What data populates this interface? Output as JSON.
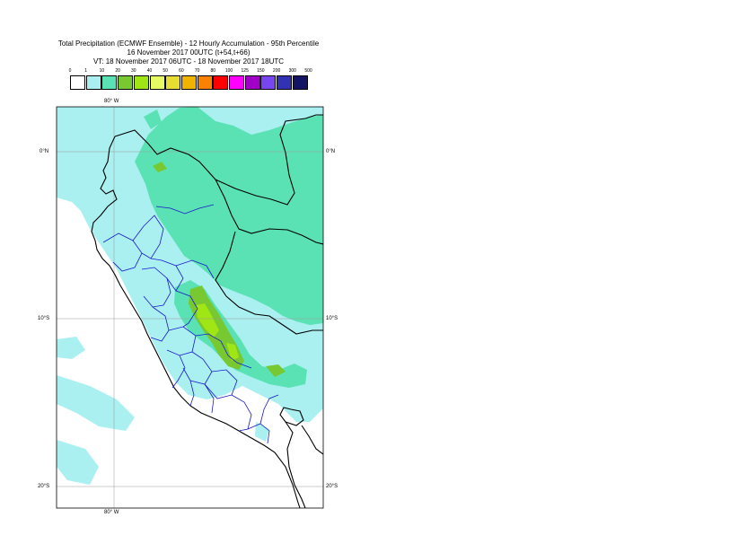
{
  "title": {
    "line1": "Total Precipitation (ECMWF Ensemble) - 12 Hourly Accumulation - 95th Percentile",
    "line2": "16 November 2017 00UTC (t+54,t+66)",
    "line3": "VT: 18 November 2017 06UTC - 18 November 2017 18UTC"
  },
  "legend": {
    "labels": [
      "0",
      "1",
      "10",
      "20",
      "30",
      "40",
      "50",
      "60",
      "70",
      "80",
      "100",
      "125",
      "150",
      "200",
      "300",
      "500"
    ],
    "colors": [
      "#ffffff",
      "#aaf0f0",
      "#5ae2b4",
      "#78c832",
      "#a0e614",
      "#e6fa64",
      "#e6dc32",
      "#f0b400",
      "#fa8200",
      "#ff0000",
      "#ff00ff",
      "#a000c8",
      "#7846f0",
      "#3232b4",
      "#141464"
    ]
  },
  "axes": {
    "lon_top": "80° W",
    "lon_bottom": "80° W",
    "lat_left": [
      "0°N",
      "10°S",
      "20°S"
    ],
    "lat_right": [
      "0°N",
      "10°S",
      "20°S"
    ]
  },
  "map_colors": {
    "ocean": "#aaf0f0",
    "land_low": "#aaf0f0",
    "land_mid": "#5ae2b4",
    "heavy": "#78c832",
    "heavier": "#a0e614",
    "coast": "#000000",
    "admin": "#1a1acc",
    "grid": "#999999"
  }
}
